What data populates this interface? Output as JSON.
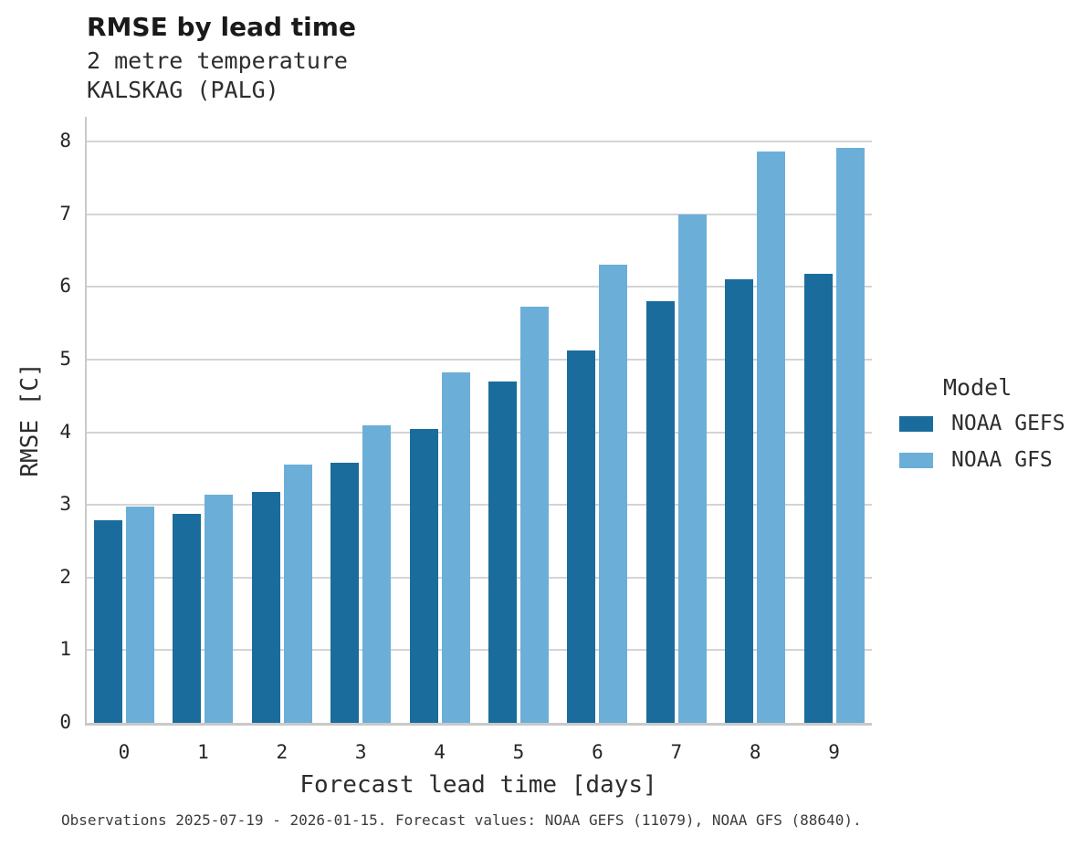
{
  "title": "RMSE by lead time",
  "subtitle_variable": "2 metre temperature",
  "subtitle_station": "KALSKAG (PALG)",
  "caption": "Observations 2025-07-19 - 2026-01-15. Forecast values: NOAA GEFS (11079), NOAA GFS (88640).",
  "chart_data": {
    "type": "bar",
    "title": "RMSE by lead time",
    "subtitle": "2 metre temperature, KALSKAG (PALG)",
    "xlabel": "Forecast lead time [days]",
    "ylabel": "RMSE [C]",
    "categories": [
      "0",
      "1",
      "2",
      "3",
      "4",
      "5",
      "6",
      "7",
      "8",
      "9"
    ],
    "series": [
      {
        "name": "NOAA GEFS",
        "color": "#1a6c9c",
        "values": [
          2.79,
          2.88,
          3.18,
          3.58,
          4.05,
          4.7,
          5.13,
          5.8,
          6.11,
          6.18
        ]
      },
      {
        "name": "NOAA GFS",
        "color": "#6bafd9",
        "values": [
          2.98,
          3.14,
          3.55,
          4.09,
          4.82,
          5.73,
          6.3,
          7.0,
          7.86,
          7.91
        ]
      }
    ],
    "ylim": [
      0,
      8
    ],
    "yticks": [
      0,
      1,
      2,
      3,
      4,
      5,
      6,
      7,
      8
    ],
    "legend_title": "Model",
    "legend_position": "right",
    "grid": true,
    "grid_color": "#d4d4d4",
    "axis_color": "#c9c9c9"
  }
}
